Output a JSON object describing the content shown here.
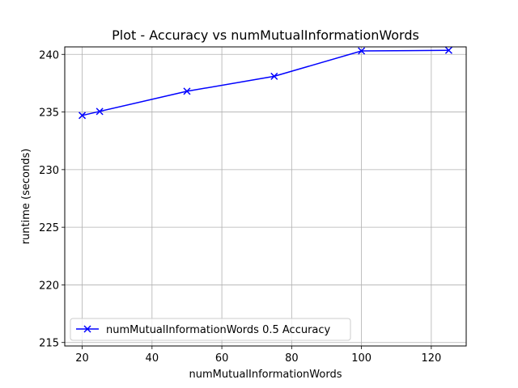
{
  "chart_data": {
    "type": "line",
    "title": "Plot - Accuracy vs numMutualInformationWords",
    "xlabel": "numMutualInformationWords",
    "ylabel": "runtime (seconds)",
    "xlim": [
      15,
      130
    ],
    "ylim": [
      214.7,
      240.65
    ],
    "xticks": [
      20,
      40,
      60,
      80,
      100,
      120
    ],
    "yticks": [
      215,
      220,
      225,
      230,
      235,
      240
    ],
    "grid": true,
    "legend_position": "lower-left",
    "series": [
      {
        "name": "numMutualInformationWords 0.5 Accuracy",
        "color": "#0000ff",
        "marker": "x",
        "x": [
          20,
          25,
          50,
          75,
          100,
          125
        ],
        "y": [
          234.7,
          235.05,
          236.8,
          238.1,
          240.3,
          240.35
        ]
      }
    ]
  }
}
